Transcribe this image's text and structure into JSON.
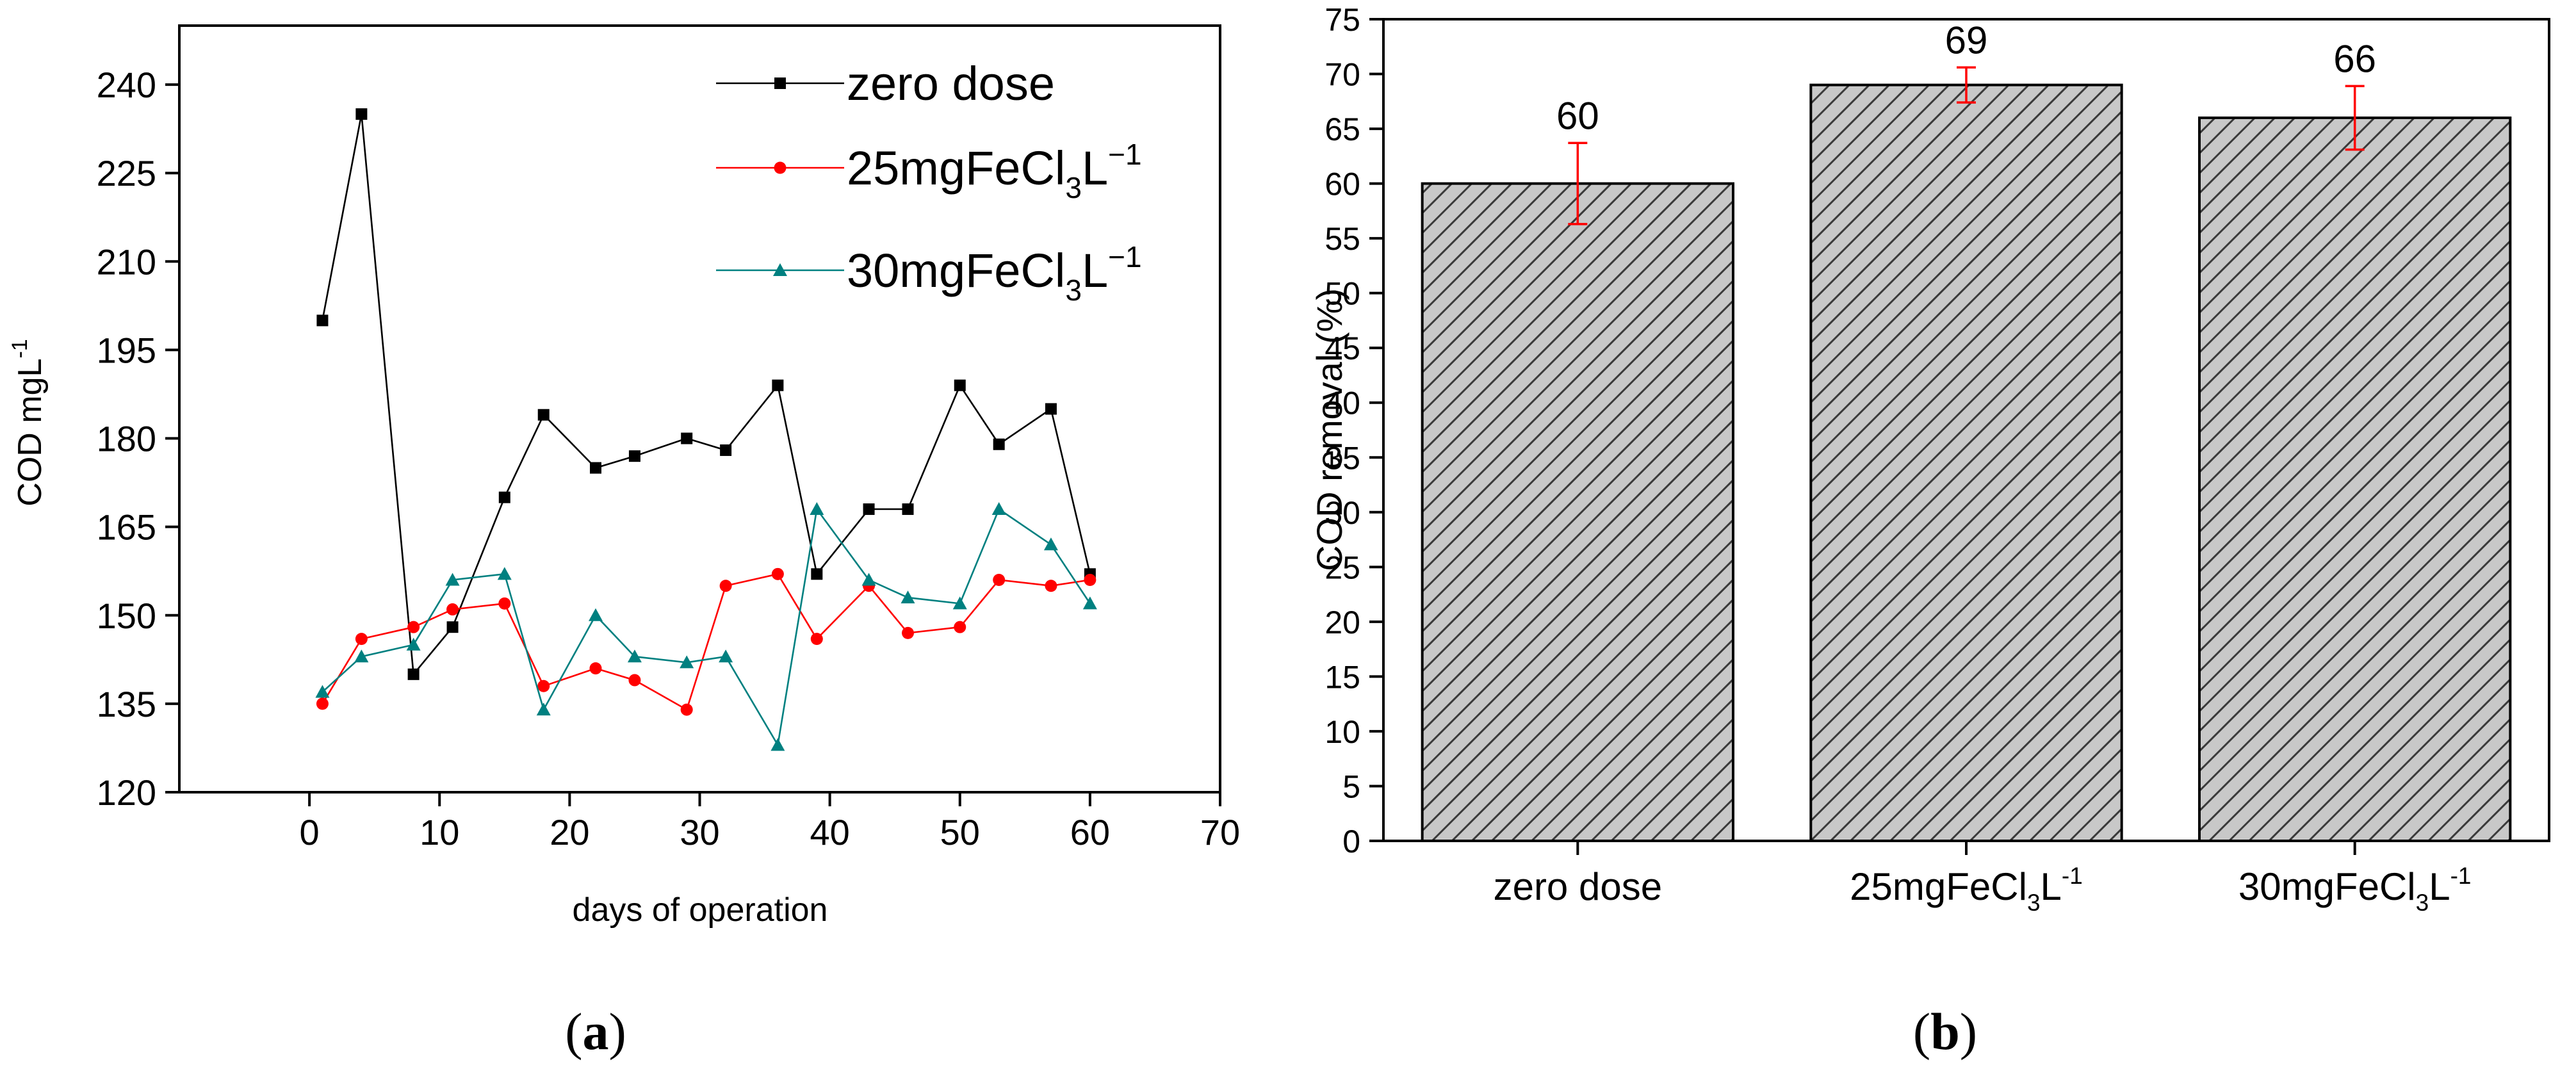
{
  "chart_data": [
    {
      "type": "line",
      "panel_label": "a",
      "xlabel": "days of operation",
      "ylabel_main": "COD mgL",
      "ylabel_sup": "-1",
      "xlim": [
        -10,
        70
      ],
      "ylim": [
        120,
        250
      ],
      "xticks": [
        0,
        10,
        20,
        30,
        40,
        50,
        60,
        70
      ],
      "yticks": [
        120,
        135,
        150,
        165,
        180,
        195,
        210,
        225,
        240
      ],
      "grid": false,
      "legend_position": "top-right",
      "series": [
        {
          "name_main": "zero dose",
          "name_sub": "",
          "name_tail": "",
          "name_sup": "",
          "color": "#000000",
          "marker": "square",
          "x": [
            1,
            4,
            8,
            11,
            15,
            18,
            22,
            25,
            29,
            32,
            36,
            39,
            43,
            46,
            50,
            53,
            57,
            60
          ],
          "y": [
            200,
            235,
            140,
            148,
            170,
            184,
            175,
            177,
            180,
            178,
            189,
            157,
            168,
            168,
            189,
            179,
            185,
            157
          ]
        },
        {
          "name_main": "25mgFeCl",
          "name_sub": "3",
          "name_tail": "L",
          "name_sup": "−1",
          "color": "#ff0000",
          "marker": "circle",
          "x": [
            1,
            4,
            8,
            11,
            15,
            18,
            22,
            25,
            29,
            32,
            36,
            39,
            43,
            46,
            50,
            53,
            57,
            60
          ],
          "y": [
            135,
            146,
            148,
            151,
            152,
            138,
            141,
            139,
            134,
            155,
            157,
            146,
            155,
            147,
            148,
            156,
            155,
            156
          ]
        },
        {
          "name_main": "30mgFeCl",
          "name_sub": "3",
          "name_tail": "L",
          "name_sup": "−1",
          "color": "#008080",
          "marker": "triangle",
          "x": [
            1,
            4,
            8,
            11,
            15,
            18,
            22,
            25,
            29,
            32,
            36,
            39,
            43,
            46,
            50,
            53,
            57,
            60
          ],
          "y": [
            137,
            143,
            145,
            156,
            157,
            134,
            150,
            143,
            142,
            143,
            128,
            168,
            156,
            153,
            152,
            168,
            162,
            152
          ]
        }
      ]
    },
    {
      "type": "bar",
      "panel_label": "b",
      "ylabel": "COD removal  (%)",
      "ylim": [
        0,
        75
      ],
      "yticks": [
        0,
        5,
        10,
        15,
        20,
        25,
        30,
        35,
        40,
        45,
        50,
        55,
        60,
        65,
        70,
        75
      ],
      "grid": false,
      "bar_color": "#c8c8c8",
      "error_color": "#ff0000",
      "categories": [
        {
          "main": "zero dose",
          "sub": "",
          "tail": "",
          "sup": ""
        },
        {
          "main": "25mgFeCl",
          "sub": "3",
          "tail": "L",
          "sup": "-1"
        },
        {
          "main": "30mgFeCl",
          "sub": "3",
          "tail": "L",
          "sup": "-1"
        }
      ],
      "values": [
        60,
        69,
        66
      ],
      "data_labels": [
        "60",
        "69",
        "66"
      ],
      "errors": [
        3.7,
        1.6,
        2.9
      ]
    }
  ]
}
